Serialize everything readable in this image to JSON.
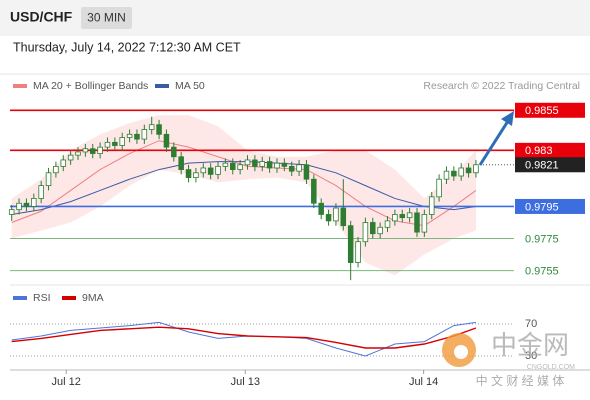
{
  "header": {
    "symbol": "USD/CHF",
    "interval": "30 MIN",
    "datetime": "Thursday, July 14, 2022 7:12:30 AM CET",
    "credit": "Research © 2022 Trading Central"
  },
  "watermark": {
    "name": "中金网",
    "domain": "CNGOLD.COM",
    "tagline": "中 文 财 经 媒 体"
  },
  "chart_data": [
    {
      "type": "candlestick",
      "xlim": [
        -0.5,
        64.5
      ],
      "ylim": [
        0.9746,
        0.9877
      ],
      "xticks": [
        {
          "value": 7.4,
          "label": "Jul 12"
        },
        {
          "value": 31.7,
          "label": "Jul 13"
        },
        {
          "value": 55.9,
          "label": "Jul 14"
        }
      ],
      "up_color": "#ffffff",
      "down_color": "#2e7d32",
      "edge_color": "#2e7d32",
      "open": [
        0.979,
        0.9793,
        0.9797,
        0.9795,
        0.98,
        0.9808,
        0.9816,
        0.982,
        0.9824,
        0.9827,
        0.9829,
        0.9831,
        0.9828,
        0.9832,
        0.9835,
        0.9833,
        0.9838,
        0.984,
        0.9837,
        0.9843,
        0.9846,
        0.984,
        0.9832,
        0.9826,
        0.9818,
        0.9813,
        0.9816,
        0.9819,
        0.9815,
        0.982,
        0.9822,
        0.9818,
        0.9821,
        0.9824,
        0.982,
        0.9823,
        0.9819,
        0.9822,
        0.982,
        0.9817,
        0.9821,
        0.9812,
        0.9797,
        0.979,
        0.9786,
        0.9794,
        0.9783,
        0.976,
        0.9773,
        0.9785,
        0.9778,
        0.9782,
        0.9786,
        0.979,
        0.9788,
        0.9791,
        0.9779,
        0.979,
        0.9801,
        0.9812,
        0.9817,
        0.9814,
        0.9819,
        0.9816
      ],
      "high": [
        0.9796,
        0.98,
        0.98,
        0.9803,
        0.9811,
        0.9819,
        0.9823,
        0.9827,
        0.983,
        0.9832,
        0.9834,
        0.9834,
        0.9835,
        0.9838,
        0.9838,
        0.9841,
        0.9843,
        0.9843,
        0.9846,
        0.9851,
        0.9849,
        0.9843,
        0.9835,
        0.9829,
        0.9821,
        0.9819,
        0.9822,
        0.9822,
        0.9823,
        0.9825,
        0.9825,
        0.9824,
        0.9827,
        0.9827,
        0.9826,
        0.9826,
        0.9825,
        0.9825,
        0.9823,
        0.9824,
        0.9824,
        0.9815,
        0.98,
        0.9793,
        0.9797,
        0.9812,
        0.9786,
        0.9776,
        0.9788,
        0.9788,
        0.9785,
        0.9789,
        0.9793,
        0.9793,
        0.9794,
        0.9794,
        0.9793,
        0.9804,
        0.9815,
        0.982,
        0.982,
        0.9822,
        0.9822,
        0.9824
      ],
      "low": [
        0.9786,
        0.979,
        0.9792,
        0.9792,
        0.9797,
        0.9805,
        0.9813,
        0.9817,
        0.9821,
        0.9824,
        0.9826,
        0.9825,
        0.9825,
        0.9829,
        0.983,
        0.983,
        0.9835,
        0.9834,
        0.9834,
        0.984,
        0.9837,
        0.9829,
        0.9823,
        0.9815,
        0.981,
        0.981,
        0.9813,
        0.9812,
        0.9812,
        0.9817,
        0.9815,
        0.9815,
        0.9818,
        0.9817,
        0.9817,
        0.9816,
        0.9816,
        0.9817,
        0.9814,
        0.9814,
        0.9809,
        0.9794,
        0.9787,
        0.9783,
        0.9783,
        0.978,
        0.9749,
        0.9757,
        0.977,
        0.9775,
        0.9775,
        0.9779,
        0.9783,
        0.9785,
        0.9785,
        0.9776,
        0.9776,
        0.9787,
        0.9798,
        0.9809,
        0.9811,
        0.9811,
        0.9813,
        0.9813
      ],
      "close": [
        0.9793,
        0.9797,
        0.9795,
        0.98,
        0.9808,
        0.9816,
        0.982,
        0.9824,
        0.9827,
        0.9829,
        0.9831,
        0.9828,
        0.9832,
        0.9835,
        0.9833,
        0.9838,
        0.984,
        0.9837,
        0.9843,
        0.9846,
        0.984,
        0.9832,
        0.9826,
        0.9818,
        0.9813,
        0.9816,
        0.9819,
        0.9815,
        0.982,
        0.9822,
        0.9818,
        0.9821,
        0.9824,
        0.982,
        0.9823,
        0.9819,
        0.9822,
        0.982,
        0.9817,
        0.9821,
        0.9812,
        0.9797,
        0.979,
        0.9786,
        0.9794,
        0.9783,
        0.976,
        0.9773,
        0.9785,
        0.9778,
        0.9782,
        0.9786,
        0.979,
        0.9788,
        0.9791,
        0.9779,
        0.979,
        0.9801,
        0.9812,
        0.9817,
        0.9814,
        0.9819,
        0.9816,
        0.9821
      ],
      "bands": {
        "name": "MA 20 + Bollinger Bands",
        "color": "#f08080",
        "fill": "#fde3e3",
        "x": [
          0,
          4,
          8,
          12,
          16,
          20,
          24,
          28,
          32,
          36,
          40,
          44,
          48,
          52,
          56,
          60,
          63
        ],
        "upper": [
          0.98,
          0.9812,
          0.983,
          0.984,
          0.9847,
          0.9852,
          0.9852,
          0.9845,
          0.983,
          0.9826,
          0.9826,
          0.983,
          0.983,
          0.9818,
          0.98,
          0.9815,
          0.983
        ],
        "values": [
          0.9785,
          0.9792,
          0.9805,
          0.9818,
          0.9828,
          0.9836,
          0.9832,
          0.9826,
          0.982,
          0.9819,
          0.9818,
          0.9808,
          0.9795,
          0.9786,
          0.9783,
          0.9795,
          0.9805
        ],
        "lower": [
          0.9775,
          0.978,
          0.9785,
          0.9795,
          0.9808,
          0.9818,
          0.9815,
          0.981,
          0.9812,
          0.9813,
          0.981,
          0.9785,
          0.976,
          0.9752,
          0.9765,
          0.9775,
          0.978
        ]
      },
      "ma50": {
        "name": "MA 50",
        "color": "#3b5ba5",
        "x": [
          0,
          4,
          8,
          12,
          16,
          20,
          24,
          28,
          32,
          36,
          40,
          44,
          48,
          52,
          56,
          60,
          63
        ],
        "values": [
          0.979,
          0.9793,
          0.9798,
          0.9805,
          0.9812,
          0.9818,
          0.9822,
          0.9823,
          0.9823,
          0.9822,
          0.9821,
          0.9816,
          0.9808,
          0.98,
          0.9795,
          0.9793,
          0.9795
        ]
      },
      "levels": [
        {
          "value": 0.9855,
          "color": "#e8000b",
          "style": "box"
        },
        {
          "value": 0.983,
          "color": "#e8000b",
          "style": "box"
        },
        {
          "value": 0.9795,
          "color": "#3d6ee0",
          "style": "box"
        },
        {
          "value": 0.9775,
          "color": "#7cb87c",
          "style": "text"
        },
        {
          "value": 0.9755,
          "color": "#7cb87c",
          "style": "text"
        }
      ],
      "last": {
        "value": 0.9821,
        "color": "#222222"
      }
    },
    {
      "type": "line",
      "xlim": [
        -0.5,
        64.5
      ],
      "ylim": [
        0,
        100
      ],
      "yticks": [
        30,
        70
      ],
      "series": [
        {
          "name": "RSI",
          "color": "#4f74d9",
          "x": [
            0,
            4,
            8,
            12,
            16,
            20,
            24,
            28,
            32,
            36,
            40,
            44,
            48,
            52,
            56,
            60,
            63
          ],
          "values": [
            50,
            55,
            62,
            65,
            68,
            72,
            60,
            52,
            55,
            54,
            52,
            40,
            30,
            45,
            48,
            68,
            72
          ]
        },
        {
          "name": "9MA",
          "color": "#d40000",
          "x": [
            0,
            4,
            8,
            12,
            16,
            20,
            24,
            28,
            32,
            36,
            40,
            44,
            48,
            52,
            56,
            60,
            63
          ],
          "values": [
            48,
            52,
            57,
            62,
            64,
            66,
            64,
            58,
            55,
            54,
            53,
            47,
            40,
            40,
            45,
            55,
            65
          ]
        }
      ]
    }
  ]
}
